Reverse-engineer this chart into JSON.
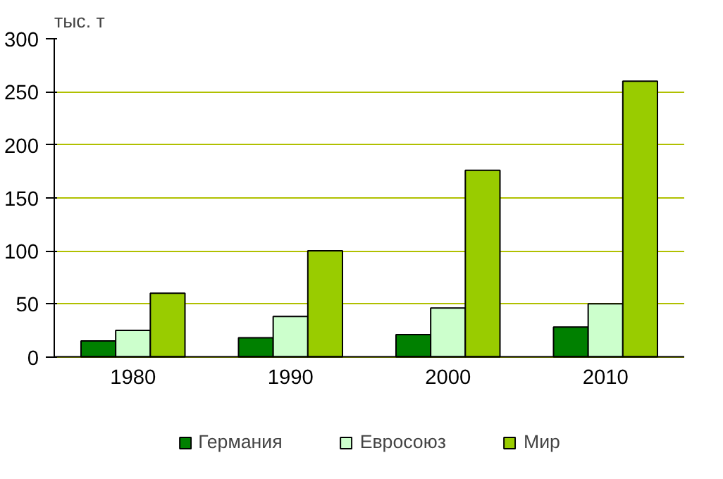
{
  "chart_data": {
    "type": "bar",
    "ylabel": "тыс. т",
    "categories": [
      "1980",
      "1990",
      "2000",
      "2010"
    ],
    "series": [
      {
        "name": "Германия",
        "color": "#008000",
        "values": [
          15,
          18,
          21,
          28
        ]
      },
      {
        "name": "Евросоюз",
        "color": "#ccffcc",
        "values": [
          25,
          38,
          46,
          50
        ]
      },
      {
        "name": "Мир",
        "color": "#99cc00",
        "values": [
          60,
          100,
          176,
          260
        ]
      }
    ],
    "ylim": [
      0,
      300
    ],
    "yticks": [
      0,
      50,
      100,
      150,
      200,
      250,
      300
    ],
    "grid": "y",
    "legend": "bottom"
  }
}
